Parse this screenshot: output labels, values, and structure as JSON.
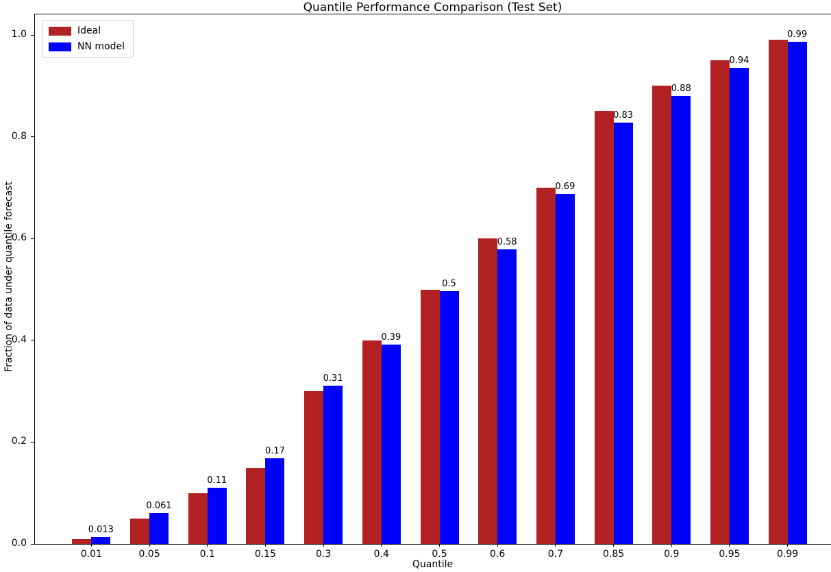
{
  "figure": {
    "title": "Quantile Performance Comparison (Test Set)",
    "xlabel": "Quantile",
    "ylabel": "Fraction of data under quantile forecast"
  },
  "legend": {
    "position": "upper left",
    "items": [
      {
        "label": "Ideal",
        "color": "#b22222"
      },
      {
        "label": "NN model",
        "color": "#0000ff"
      }
    ]
  },
  "chart_data": {
    "type": "bar",
    "title": "Quantile Performance Comparison (Test Set)",
    "xlabel": "Quantile",
    "ylabel": "Fraction of data under quantile forecast",
    "categories": [
      "0.01",
      "0.05",
      "0.1",
      "0.15",
      "0.3",
      "0.4",
      "0.5",
      "0.6",
      "0.7",
      "0.85",
      "0.9",
      "0.95",
      "0.99"
    ],
    "series": [
      {
        "name": "Ideal",
        "color": "#b22222",
        "values": [
          0.01,
          0.05,
          0.1,
          0.15,
          0.3,
          0.4,
          0.5,
          0.6,
          0.7,
          0.85,
          0.9,
          0.95,
          0.99
        ]
      },
      {
        "name": "NN model",
        "color": "#0000ff",
        "values": [
          0.013,
          0.061,
          0.111,
          0.168,
          0.311,
          0.392,
          0.497,
          0.579,
          0.688,
          0.828,
          0.88,
          0.936,
          0.987
        ],
        "value_labels": [
          "0.013",
          "0.061",
          "0.11",
          "0.17",
          "0.31",
          "0.39",
          "0.5",
          "0.58",
          "0.69",
          "0.83",
          "0.88",
          "0.94",
          "0.99"
        ]
      }
    ],
    "ylim": [
      0,
      1.04
    ],
    "yticks": [
      "0.0",
      "0.2",
      "0.4",
      "0.6",
      "0.8",
      "1.0"
    ],
    "grid": false,
    "legend_position": "upper left",
    "value_labels_on": "NN model"
  }
}
